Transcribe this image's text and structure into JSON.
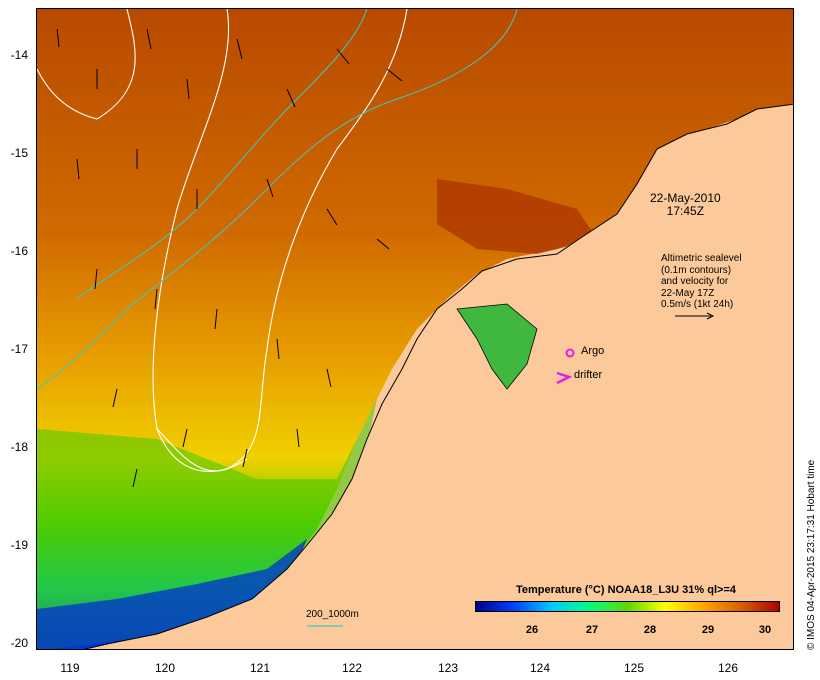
{
  "map": {
    "lat_ticks": [
      "-14",
      "-15",
      "-16",
      "-17",
      "-18",
      "-19",
      "-20"
    ],
    "lon_ticks": [
      "119",
      "120",
      "121",
      "122",
      "123",
      "124",
      "125",
      "126"
    ],
    "lat_range": [
      -20.05,
      -13.6
    ],
    "lon_range": [
      118.65,
      126.75
    ]
  },
  "annotations": {
    "date": "22-May-2010",
    "time": "17:45Z",
    "altimetry_lines": [
      "Altimetric sealevel",
      "(0.1m contours)",
      "and velocity for",
      "22-May 17Z",
      "0.5m/s (1kt 24h)"
    ],
    "isobath_label": "200_1000m"
  },
  "legend": {
    "argo_label": "Argo",
    "drifter_label": "drifter",
    "argo_color": "#e020e0",
    "drifter_color": "#e020e0"
  },
  "colorbar": {
    "title": "Temperature (°C) NOAA18_L3U 31% ql>=4",
    "ticks": [
      "26",
      "27",
      "28",
      "29",
      "30"
    ],
    "range": [
      25.0,
      30.3
    ],
    "colors": [
      "#00008b",
      "#0040ff",
      "#00c8ff",
      "#00ff80",
      "#60d800",
      "#ffff00",
      "#ffa500",
      "#d86000",
      "#b00000"
    ]
  },
  "credit": "© IMOS 04-Apr-2015 23:17:31 Hobart time",
  "colors": {
    "land": "#fbc99a",
    "sealevel_contour": "#ffffff",
    "isobath": "#3cc8c8",
    "velocity_arrow": "#000000"
  }
}
